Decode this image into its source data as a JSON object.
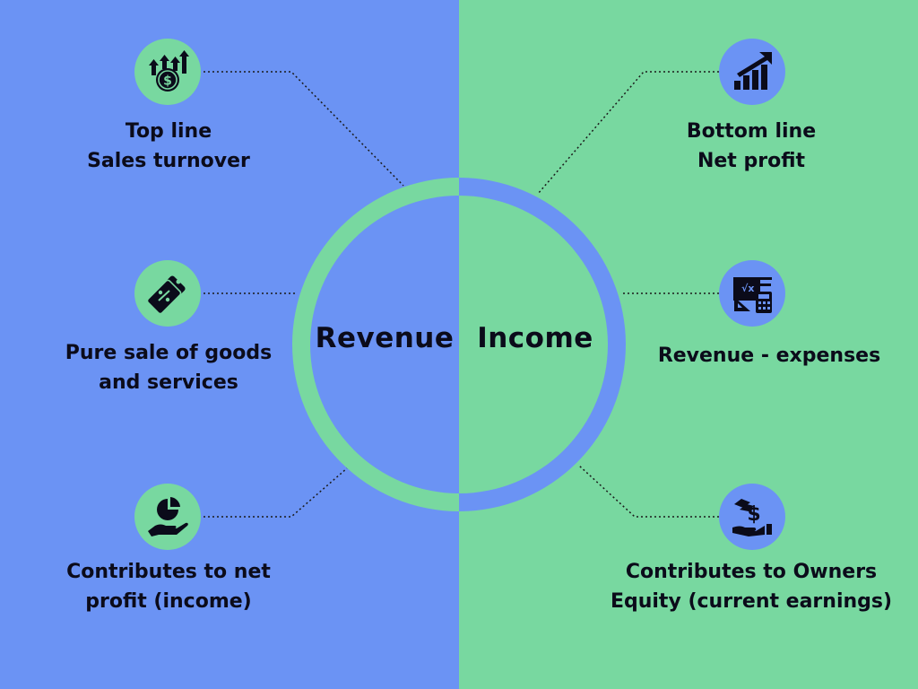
{
  "colors": {
    "left_bg": "#6b93f4",
    "right_bg": "#78d8a0",
    "text": "#0b0b1a"
  },
  "center": {
    "left_word": "Revenue",
    "right_word": "Income"
  },
  "left": [
    {
      "lines": [
        "Top line",
        "Sales turnover"
      ],
      "icon": "money-growth-icon"
    },
    {
      "lines": [
        "Pure sale of goods",
        "and services"
      ],
      "icon": "price-tags-icon"
    },
    {
      "lines": [
        "Contributes to net",
        "profit (income)"
      ],
      "icon": "hand-pie-chart-icon"
    }
  ],
  "right": [
    {
      "lines": [
        "Bottom line",
        "Net profit"
      ],
      "icon": "bar-chart-growth-icon"
    },
    {
      "lines": [
        "Revenue - expenses"
      ],
      "icon": "calculator-tools-icon"
    },
    {
      "lines": [
        "Contributes to Owners",
        "Equity (current earnings)"
      ],
      "icon": "hand-dollar-icon"
    }
  ]
}
